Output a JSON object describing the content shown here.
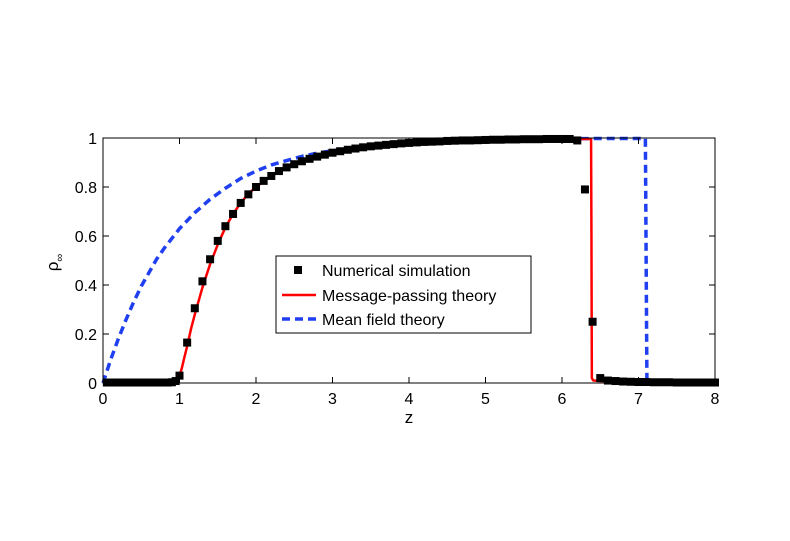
{
  "chart_data": {
    "type": "line",
    "title": "",
    "xlabel": "z",
    "ylabel": "ρ∞",
    "ylabel_main": "ρ",
    "ylabel_sub": "∞",
    "xlim": [
      0,
      8
    ],
    "ylim": [
      0,
      1
    ],
    "xticks": [
      0,
      1,
      2,
      3,
      4,
      5,
      6,
      7,
      8
    ],
    "yticks": [
      0,
      0.2,
      0.4,
      0.6,
      0.8,
      1
    ],
    "xtick_labels": [
      "0",
      "1",
      "2",
      "3",
      "4",
      "5",
      "6",
      "7",
      "8"
    ],
    "ytick_labels": [
      "0",
      "0.2",
      "0.4",
      "0.6",
      "0.8",
      "1"
    ],
    "grid": false,
    "legend_position": "center",
    "series": [
      {
        "name": "Numerical simulation",
        "style": "markers",
        "marker": "square",
        "color": "#000000",
        "x": [
          0.05,
          0.1,
          0.15,
          0.2,
          0.25,
          0.3,
          0.35,
          0.4,
          0.45,
          0.5,
          0.55,
          0.6,
          0.65,
          0.7,
          0.75,
          0.8,
          0.85,
          0.9,
          0.95,
          1.0,
          1.1,
          1.2,
          1.3,
          1.4,
          1.5,
          1.6,
          1.7,
          1.8,
          1.9,
          2.0,
          2.1,
          2.2,
          2.3,
          2.4,
          2.5,
          2.6,
          2.7,
          2.8,
          2.9,
          3.0,
          3.1,
          3.2,
          3.3,
          3.4,
          3.5,
          3.6,
          3.7,
          3.8,
          3.9,
          4.0,
          4.1,
          4.2,
          4.3,
          4.4,
          4.5,
          4.6,
          4.7,
          4.8,
          4.9,
          5.0,
          5.1,
          5.2,
          5.3,
          5.4,
          5.5,
          5.6,
          5.7,
          5.8,
          5.9,
          6.0,
          6.1,
          6.2,
          6.3,
          6.4,
          6.5,
          6.6,
          6.7,
          6.8,
          6.9,
          7.0,
          7.1,
          7.2,
          7.3,
          7.4,
          7.5,
          7.6,
          7.7,
          7.8,
          7.9,
          8.0
        ],
        "y": [
          0.002,
          0.002,
          0.002,
          0.002,
          0.002,
          0.002,
          0.002,
          0.002,
          0.002,
          0.002,
          0.002,
          0.002,
          0.002,
          0.002,
          0.002,
          0.002,
          0.002,
          0.003,
          0.008,
          0.03,
          0.165,
          0.305,
          0.415,
          0.505,
          0.58,
          0.64,
          0.69,
          0.735,
          0.77,
          0.8,
          0.825,
          0.845,
          0.865,
          0.88,
          0.893,
          0.905,
          0.915,
          0.924,
          0.932,
          0.94,
          0.946,
          0.952,
          0.957,
          0.962,
          0.966,
          0.969,
          0.972,
          0.975,
          0.978,
          0.98,
          0.982,
          0.984,
          0.985,
          0.986,
          0.988,
          0.989,
          0.99,
          0.99,
          0.991,
          0.992,
          0.993,
          0.993,
          0.994,
          0.994,
          0.995,
          0.995,
          0.995,
          0.996,
          0.996,
          0.996,
          0.996,
          0.99,
          0.79,
          0.25,
          0.02,
          0.01,
          0.008,
          0.006,
          0.005,
          0.004,
          0.004,
          0.003,
          0.003,
          0.003,
          0.002,
          0.002,
          0.002,
          0.002,
          0.002,
          0.002
        ]
      },
      {
        "name": "Message-passing theory",
        "style": "solid",
        "color": "#ff0000",
        "x": [
          0,
          0.5,
          0.8,
          0.9,
          0.95,
          1.0,
          1.03,
          1.06,
          1.1,
          1.15,
          1.2,
          1.3,
          1.4,
          1.5,
          1.6,
          1.7,
          1.8,
          1.9,
          2.0,
          2.2,
          2.4,
          2.6,
          2.8,
          3.0,
          3.2,
          3.5,
          4.0,
          4.5,
          5.0,
          5.5,
          6.0,
          6.2,
          6.38,
          6.385,
          6.39,
          6.41,
          6.5,
          7.0,
          8.0
        ],
        "y": [
          0.003,
          0.003,
          0.005,
          0.01,
          0.015,
          0.03,
          0.06,
          0.1,
          0.15,
          0.22,
          0.28,
          0.39,
          0.485,
          0.565,
          0.635,
          0.69,
          0.735,
          0.772,
          0.8,
          0.845,
          0.88,
          0.905,
          0.925,
          0.94,
          0.952,
          0.965,
          0.98,
          0.988,
          0.993,
          0.995,
          0.996,
          0.996,
          0.996,
          0.6,
          0.02,
          0.01,
          0.008,
          0.005,
          0.003
        ]
      },
      {
        "name": "Mean field theory",
        "style": "dashed",
        "color": "#1f3ff0",
        "x": [
          0,
          0.1,
          0.2,
          0.3,
          0.4,
          0.5,
          0.6,
          0.7,
          0.8,
          0.9,
          1.0,
          1.2,
          1.4,
          1.6,
          1.8,
          2.0,
          2.2,
          2.4,
          2.6,
          2.8,
          3.0,
          3.3,
          3.6,
          4.0,
          4.5,
          5.0,
          5.5,
          6.0,
          6.5,
          7.0,
          7.09,
          7.1,
          7.11,
          7.5,
          8.0
        ],
        "y": [
          0,
          0.095,
          0.18,
          0.258,
          0.33,
          0.395,
          0.45,
          0.505,
          0.55,
          0.59,
          0.63,
          0.695,
          0.75,
          0.795,
          0.835,
          0.865,
          0.89,
          0.908,
          0.925,
          0.938,
          0.948,
          0.96,
          0.97,
          0.98,
          0.988,
          0.993,
          0.996,
          0.997,
          0.998,
          0.998,
          0.998,
          0.5,
          0.005,
          0.003,
          0.002
        ]
      }
    ]
  }
}
